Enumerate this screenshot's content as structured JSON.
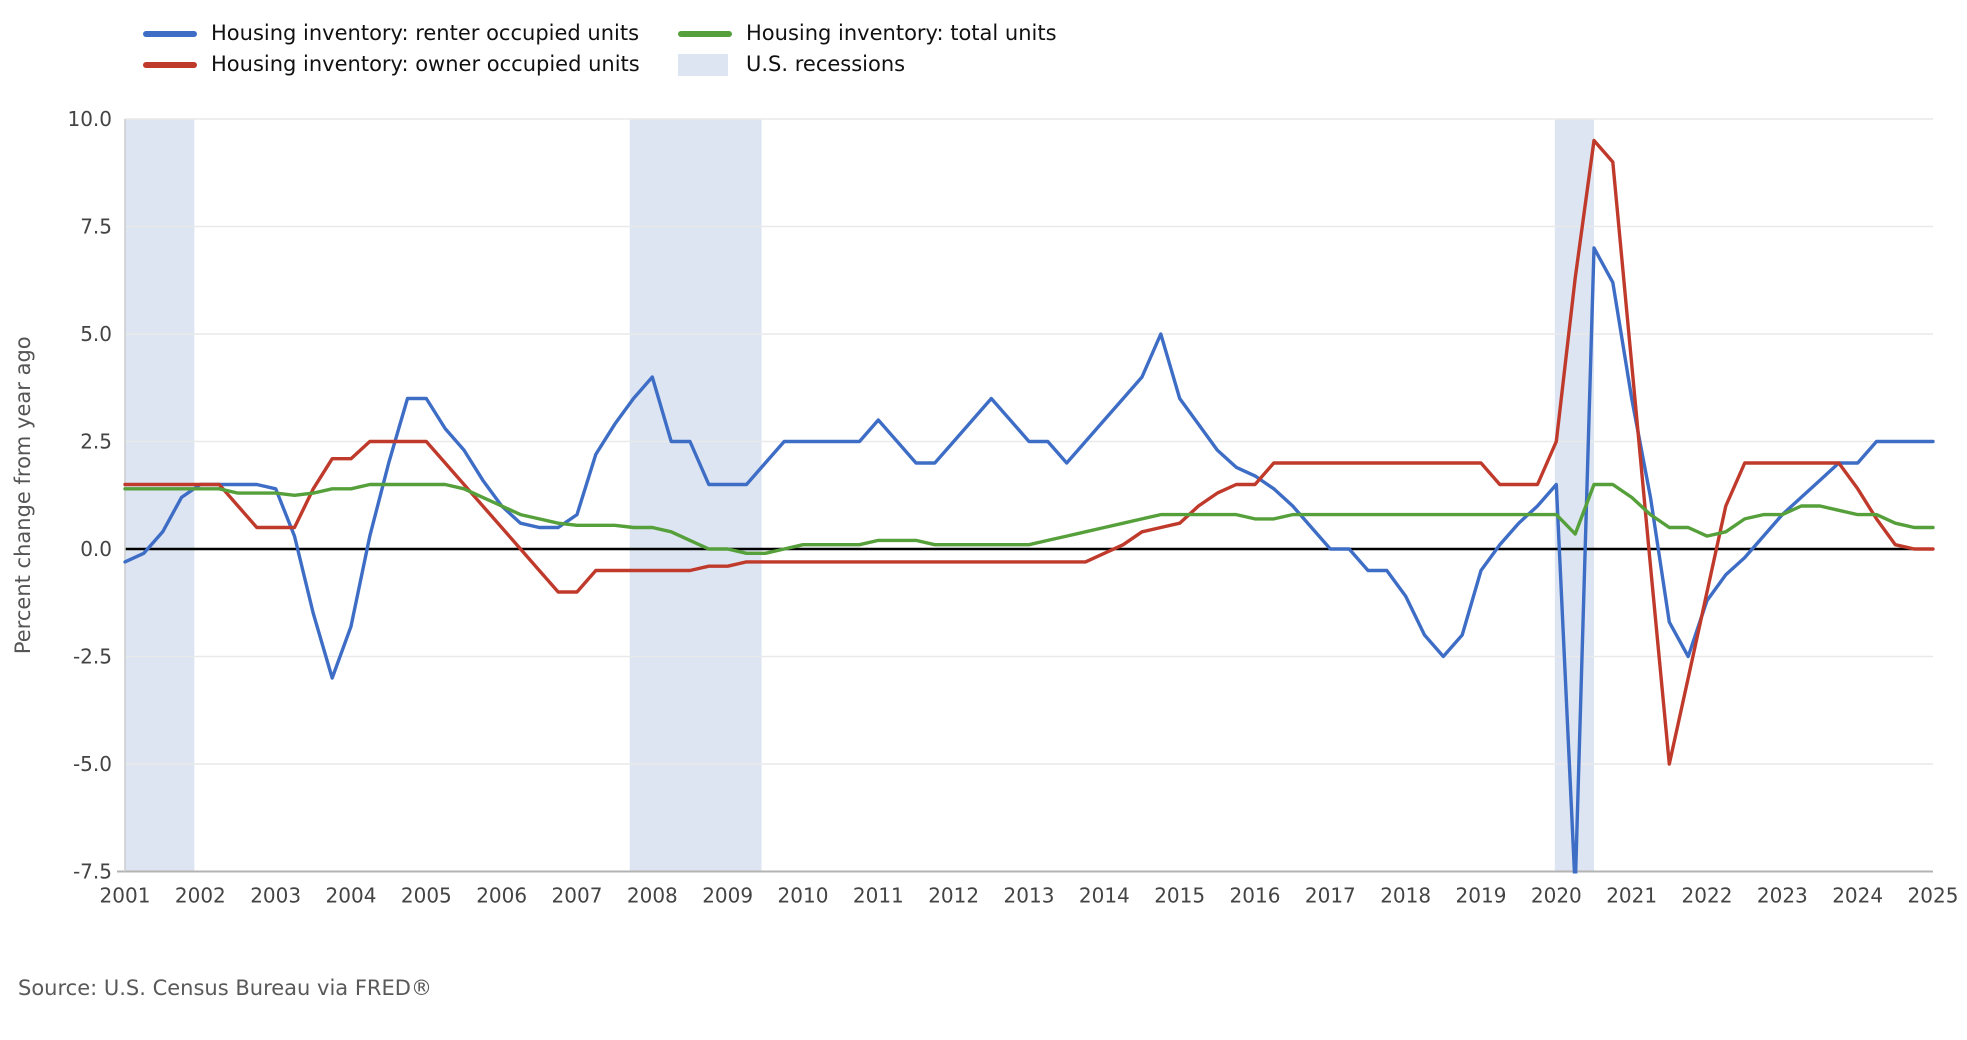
{
  "legend": {
    "items": [
      {
        "id": "renter",
        "label": "Housing inventory: renter occupied units",
        "type": "line",
        "color": "#3e6dc6"
      },
      {
        "id": "owner",
        "label": "Housing inventory: owner occupied units",
        "type": "line",
        "color": "#c03a2c"
      },
      {
        "id": "total",
        "label": "Housing inventory: total units",
        "type": "line",
        "color": "#56a03b"
      },
      {
        "id": "recessions",
        "label": "U.S. recessions",
        "type": "band",
        "color": "#dce5f1"
      }
    ]
  },
  "y_axis": {
    "title": "Percent change from year ago",
    "ticks": [
      10.0,
      7.5,
      5.0,
      2.5,
      0.0,
      -2.5,
      -5.0,
      -7.5
    ]
  },
  "x_axis": {
    "ticks": [
      2001,
      2002,
      2003,
      2004,
      2005,
      2006,
      2007,
      2008,
      2009,
      2010,
      2011,
      2012,
      2013,
      2014,
      2015,
      2016,
      2017,
      2018,
      2019,
      2020,
      2021,
      2022,
      2023,
      2024,
      2025
    ]
  },
  "source": "Source: U.S. Census Bureau via FRED®",
  "colors": {
    "grid": "#e9e9e9",
    "zero_line": "#000000",
    "axis_line": "#b3b3b3",
    "spine": "#cccccc",
    "recession_band": "#dce5f1",
    "tick_text": "#444444",
    "axis_title_text": "#555555",
    "source_text": "#595959"
  },
  "chart_data": {
    "type": "line",
    "title": "",
    "xlabel": "",
    "ylabel": "Percent change from year ago",
    "x_unit": "quarterly, decimal years",
    "x_start": 2001.0,
    "x_step": 0.25,
    "xlim": [
      2001.0,
      2025.0
    ],
    "ylim": [
      -7.5,
      10.0
    ],
    "grid": "horizontal only",
    "legend_position": "top-left",
    "recession_bands": [
      [
        2001.0,
        2001.92
      ],
      [
        2007.7,
        2009.45
      ],
      [
        2019.98,
        2020.5
      ]
    ],
    "series": [
      {
        "id": "renter",
        "name": "Housing inventory: renter occupied units",
        "color": "#3e6dc6",
        "values": [
          -0.3,
          -0.1,
          0.4,
          1.2,
          1.5,
          1.5,
          1.5,
          1.5,
          1.4,
          0.3,
          -1.5,
          -3.0,
          -1.8,
          0.3,
          2.0,
          3.5,
          3.5,
          2.8,
          2.3,
          1.6,
          1.0,
          0.6,
          0.5,
          0.5,
          0.8,
          2.2,
          2.9,
          3.5,
          4.0,
          2.5,
          2.5,
          1.5,
          1.5,
          1.5,
          2.0,
          2.5,
          2.5,
          2.5,
          2.5,
          2.5,
          3.0,
          2.5,
          2.0,
          2.0,
          2.5,
          3.0,
          3.5,
          3.0,
          2.5,
          2.5,
          2.0,
          2.5,
          3.0,
          3.5,
          4.0,
          5.0,
          3.5,
          2.9,
          2.3,
          1.9,
          1.7,
          1.4,
          1.0,
          0.5,
          0.0,
          0.0,
          -0.5,
          -0.5,
          -1.1,
          -2.0,
          -2.5,
          -2.0,
          -0.5,
          0.1,
          0.6,
          1.0,
          1.5,
          -7.9,
          7.0,
          6.2,
          3.5,
          1.2,
          -1.7,
          -2.5,
          -1.2,
          -0.6,
          -0.2,
          0.3,
          0.8,
          1.2,
          1.6,
          2.0,
          2.0,
          2.5,
          2.5,
          2.5,
          2.5
        ]
      },
      {
        "id": "owner",
        "name": "Housing inventory: owner occupied units",
        "color": "#c03a2c",
        "values": [
          1.5,
          1.5,
          1.5,
          1.5,
          1.5,
          1.5,
          1.0,
          0.5,
          0.5,
          0.5,
          1.4,
          2.1,
          2.1,
          2.5,
          2.5,
          2.5,
          2.5,
          2.0,
          1.5,
          1.0,
          0.5,
          0.0,
          -0.5,
          -1.0,
          -1.0,
          -0.5,
          -0.5,
          -0.5,
          -0.5,
          -0.5,
          -0.5,
          -0.4,
          -0.4,
          -0.3,
          -0.3,
          -0.3,
          -0.3,
          -0.3,
          -0.3,
          -0.3,
          -0.3,
          -0.3,
          -0.3,
          -0.3,
          -0.3,
          -0.3,
          -0.3,
          -0.3,
          -0.3,
          -0.3,
          -0.3,
          -0.3,
          -0.1,
          0.1,
          0.4,
          0.5,
          0.6,
          1.0,
          1.3,
          1.5,
          1.5,
          2.0,
          2.0,
          2.0,
          2.0,
          2.0,
          2.0,
          2.0,
          2.0,
          2.0,
          2.0,
          2.0,
          2.0,
          1.5,
          1.5,
          1.5,
          2.5,
          6.3,
          9.5,
          9.0,
          4.3,
          -0.4,
          -5.0,
          -3.0,
          -1.0,
          1.0,
          2.0,
          2.0,
          2.0,
          2.0,
          2.0,
          2.0,
          1.4,
          0.7,
          0.1,
          0.0,
          0.0
        ]
      },
      {
        "id": "total",
        "name": "Housing inventory: total units",
        "color": "#56a03b",
        "values": [
          1.4,
          1.4,
          1.4,
          1.4,
          1.4,
          1.4,
          1.3,
          1.3,
          1.3,
          1.25,
          1.3,
          1.4,
          1.4,
          1.5,
          1.5,
          1.5,
          1.5,
          1.5,
          1.4,
          1.2,
          1.0,
          0.8,
          0.7,
          0.6,
          0.55,
          0.55,
          0.55,
          0.5,
          0.5,
          0.4,
          0.2,
          0.0,
          0.0,
          -0.1,
          -0.1,
          0.0,
          0.1,
          0.1,
          0.1,
          0.1,
          0.2,
          0.2,
          0.2,
          0.1,
          0.1,
          0.1,
          0.1,
          0.1,
          0.1,
          0.2,
          0.3,
          0.4,
          0.5,
          0.6,
          0.7,
          0.8,
          0.8,
          0.8,
          0.8,
          0.8,
          0.7,
          0.7,
          0.8,
          0.8,
          0.8,
          0.8,
          0.8,
          0.8,
          0.8,
          0.8,
          0.8,
          0.8,
          0.8,
          0.8,
          0.8,
          0.8,
          0.8,
          0.35,
          1.5,
          1.5,
          1.2,
          0.8,
          0.5,
          0.5,
          0.3,
          0.4,
          0.7,
          0.8,
          0.8,
          1.0,
          1.0,
          0.9,
          0.8,
          0.8,
          0.6,
          0.5,
          0.5
        ]
      }
    ]
  }
}
